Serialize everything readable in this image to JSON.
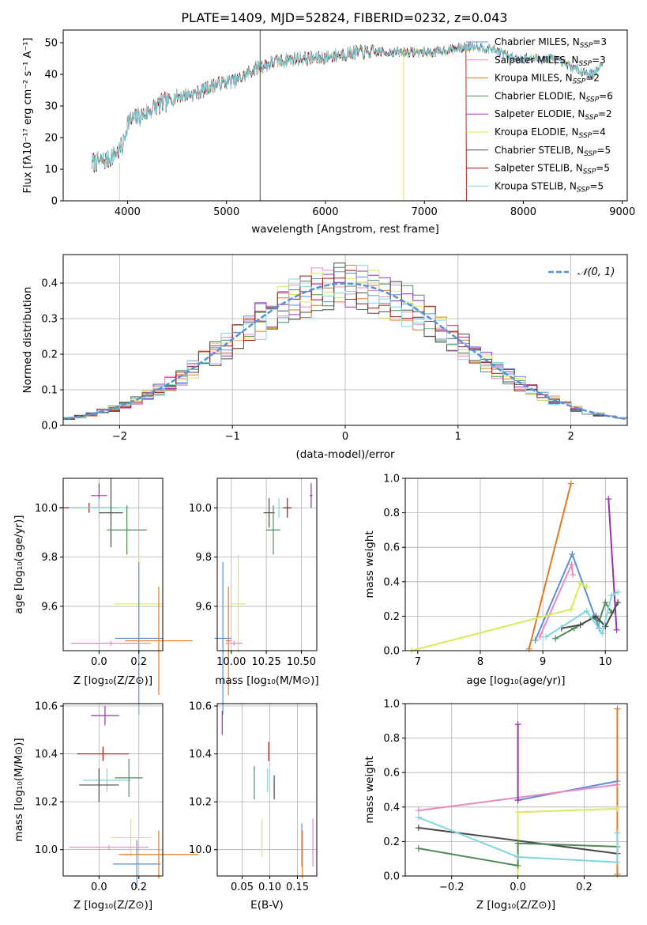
{
  "figure": {
    "title": "PLATE=1409, MJD=52824, FIBERID=0232, z=0.043",
    "colors": {
      "chabrier_miles": "#5b8fd9",
      "salpeter_miles": "#e88ac0",
      "kroupa_miles": "#e07b24",
      "chabrier_elodie": "#4f8a5b",
      "salpeter_elodie": "#9a2fb0",
      "kroupa_elodie": "#d9e95a",
      "chabrier_stelib": "#4a4a4a",
      "salpeter_stelib": "#a31515",
      "kroupa_stelib": "#7fd6e0",
      "gauss": "#5b8fd9"
    }
  },
  "chart_data": [
    {
      "id": "spectrum",
      "type": "line",
      "title": "PLATE=1409, MJD=52824, FIBERID=0232, z=0.043",
      "xlabel": "wavelength [Angstrom, rest frame]",
      "ylabel": "Flux [fλ10⁻¹⁷ erg cm⁻² s⁻¹ A⁻¹]",
      "xlim": [
        3350,
        9050
      ],
      "ylim": [
        0,
        54
      ],
      "xticks": [
        4000,
        5000,
        6000,
        7000,
        8000,
        9000
      ],
      "yticks": [
        0,
        10,
        20,
        30,
        40,
        50
      ],
      "grid": false,
      "legend_position": "top-right",
      "continuum": [
        [
          3640,
          12
        ],
        [
          3800,
          13
        ],
        [
          3950,
          17
        ],
        [
          4000,
          25
        ],
        [
          4150,
          27
        ],
        [
          4300,
          30
        ],
        [
          4500,
          33
        ],
        [
          4700,
          34
        ],
        [
          4900,
          37
        ],
        [
          5100,
          38
        ],
        [
          5300,
          42
        ],
        [
          5500,
          44
        ],
        [
          5700,
          45
        ],
        [
          5900,
          45
        ],
        [
          6100,
          46
        ],
        [
          6300,
          47
        ],
        [
          6500,
          47
        ],
        [
          6700,
          47
        ],
        [
          6900,
          47
        ],
        [
          7100,
          47
        ],
        [
          7300,
          48
        ],
        [
          7500,
          49
        ],
        [
          7700,
          48
        ],
        [
          7900,
          45
        ],
        [
          8100,
          45
        ],
        [
          8300,
          45
        ],
        [
          8500,
          42
        ],
        [
          8700,
          40
        ],
        [
          8800,
          43
        ]
      ],
      "series": [
        {
          "name": "Chabrier MILES, N",
          "sub": "SSP",
          "suffix": "=3",
          "color": "#5b8fd9"
        },
        {
          "name": "Salpeter MILES, N",
          "sub": "SSP",
          "suffix": "=3",
          "color": "#e88ac0"
        },
        {
          "name": "Kroupa MILES, N",
          "sub": "SSP",
          "suffix": "=2",
          "color": "#e07b24"
        },
        {
          "name": "Chabrier ELODIE, N",
          "sub": "SSP",
          "suffix": "=6",
          "color": "#4f8a5b"
        },
        {
          "name": "Salpeter ELODIE, N",
          "sub": "SSP",
          "suffix": "=2",
          "color": "#9a2fb0"
        },
        {
          "name": "Kroupa ELODIE, N",
          "sub": "SSP",
          "suffix": "=4",
          "color": "#d9e95a"
        },
        {
          "name": "Chabrier STELIB, N",
          "sub": "SSP",
          "suffix": "=5",
          "color": "#4a4a4a"
        },
        {
          "name": "Salpeter STELIB, N",
          "sub": "SSP",
          "suffix": "=5",
          "color": "#a31515"
        },
        {
          "name": "Kroupa STELIB, N",
          "sub": "SSP",
          "suffix": "=5",
          "color": "#7fd6e0"
        }
      ]
    },
    {
      "id": "residuals",
      "type": "line",
      "xlabel": "(data-model)/error",
      "ylabel": "Normed distribution",
      "xlim": [
        -2.5,
        2.5
      ],
      "ylim": [
        0,
        0.48
      ],
      "xticks": [
        -2,
        -1,
        0,
        1,
        2
      ],
      "yticks": [
        0.0,
        0.1,
        0.2,
        0.3,
        0.4
      ],
      "grid": true,
      "legend_position": "top-right",
      "legend": "𝒩(0, 1)",
      "bin_width": 0.1
    },
    {
      "id": "age_vs_z",
      "type": "scatter",
      "xlabel": "Z [log₁₀(Z/Z⊙)]",
      "ylabel": "age  [log₁₀(age/yr)]",
      "xlim": [
        -0.18,
        0.32
      ],
      "ylim": [
        9.42,
        10.12
      ],
      "xticks": [
        0.0,
        0.2
      ],
      "yticks": [
        9.6,
        9.8,
        10.0
      ],
      "grid": true,
      "points": [
        {
          "x": 0.0,
          "y": 10.05,
          "xerr": 0.04,
          "yerr": 0.05,
          "c": "#9a2fb0"
        },
        {
          "x": -0.05,
          "y": 10.0,
          "xerr": 0.15,
          "yerr": 0.02,
          "c": "#a31515"
        },
        {
          "x": 0.0,
          "y": 10.0,
          "xerr": 0.15,
          "yerr": 0.04,
          "c": "#7fd6e0"
        },
        {
          "x": 0.06,
          "y": 9.98,
          "xerr": 0.06,
          "yerr": 0.14,
          "c": "#4a4a4a"
        },
        {
          "x": 0.14,
          "y": 9.91,
          "xerr": 0.1,
          "yerr": 0.1,
          "c": "#4f8a5b"
        },
        {
          "x": 0.2,
          "y": 9.61,
          "xerr": 0.12,
          "yerr": 0.2,
          "c": "#d9e95a"
        },
        {
          "x": 0.2,
          "y": 9.47,
          "xerr": 0.12,
          "yerr": 0.31,
          "c": "#5b8fd9"
        },
        {
          "x": 0.3,
          "y": 9.46,
          "xerr": 0.17,
          "yerr": 0.22,
          "c": "#e07b24"
        },
        {
          "x": 0.06,
          "y": 9.45,
          "xerr": 0.2,
          "yerr": 0.01,
          "c": "#e88ac0"
        }
      ]
    },
    {
      "id": "age_vs_mass",
      "type": "scatter",
      "xlabel": "mass [log₁₀(M/M⊙)]",
      "ylabel": "",
      "xlim": [
        9.9,
        10.61
      ],
      "ylim": [
        9.42,
        10.12
      ],
      "xticks": [
        10.0,
        10.25,
        10.5
      ],
      "yticks": [
        9.6,
        9.8,
        10.0
      ],
      "grid": true,
      "points": [
        {
          "x": 10.57,
          "y": 10.05,
          "xerr": 0.01,
          "yerr": 0.05,
          "c": "#9a2fb0"
        },
        {
          "x": 10.4,
          "y": 10.0,
          "xerr": 0.03,
          "yerr": 0.04,
          "c": "#a31515"
        },
        {
          "x": 10.34,
          "y": 10.0,
          "xerr": 0.01,
          "yerr": 0.04,
          "c": "#7fd6e0"
        },
        {
          "x": 10.27,
          "y": 9.98,
          "xerr": 0.04,
          "yerr": 0.06,
          "c": "#4a4a4a"
        },
        {
          "x": 10.3,
          "y": 9.91,
          "xerr": 0.05,
          "yerr": 0.1,
          "c": "#4f8a5b"
        },
        {
          "x": 10.05,
          "y": 9.61,
          "xerr": 0.05,
          "yerr": 0.2,
          "c": "#d9e95a"
        },
        {
          "x": 9.94,
          "y": 9.47,
          "xerr": 0.06,
          "yerr": 0.31,
          "c": "#5b8fd9"
        },
        {
          "x": 9.98,
          "y": 9.46,
          "xerr": 0.02,
          "yerr": 0.22,
          "c": "#e07b24"
        },
        {
          "x": 10.02,
          "y": 9.45,
          "xerr": 0.06,
          "yerr": 0.01,
          "c": "#e88ac0"
        }
      ]
    },
    {
      "id": "weight_vs_age",
      "type": "line",
      "xlabel": "age  [log₁₀(age/yr)]",
      "ylabel": "mass weight",
      "xlim": [
        6.8,
        10.35
      ],
      "ylim": [
        0,
        1.0
      ],
      "xticks": [
        7,
        8,
        9,
        10
      ],
      "yticks": [
        0.0,
        0.2,
        0.4,
        0.6,
        0.8,
        1.0
      ],
      "grid": true,
      "series": [
        {
          "c": "#e07b24",
          "pts": [
            [
              8.78,
              0.01
            ],
            [
              9.45,
              0.97
            ]
          ]
        },
        {
          "c": "#5b8fd9",
          "pts": [
            [
              8.88,
              0.06
            ],
            [
              9.47,
              0.56
            ],
            [
              9.9,
              0.13
            ]
          ]
        },
        {
          "c": "#e88ac0",
          "pts": [
            [
              8.95,
              0.08
            ],
            [
              9.46,
              0.5
            ],
            [
              9.48,
              0.44
            ]
          ]
        },
        {
          "c": "#9a2fb0",
          "pts": [
            [
              10.05,
              0.88
            ],
            [
              10.18,
              0.12
            ]
          ]
        },
        {
          "c": "#d9e95a",
          "pts": [
            [
              6.9,
              0.0
            ],
            [
              9.45,
              0.24
            ],
            [
              9.6,
              0.39
            ],
            [
              9.7,
              0.37
            ]
          ]
        },
        {
          "c": "#4f8a5b",
          "pts": [
            [
              9.2,
              0.07
            ],
            [
              9.5,
              0.13
            ],
            [
              9.8,
              0.19
            ],
            [
              9.9,
              0.17
            ],
            [
              10.0,
              0.28
            ],
            [
              10.1,
              0.22
            ]
          ]
        },
        {
          "c": "#4a4a4a",
          "pts": [
            [
              9.3,
              0.13
            ],
            [
              9.6,
              0.15
            ],
            [
              9.85,
              0.2
            ],
            [
              10.0,
              0.14
            ],
            [
              10.2,
              0.28
            ]
          ]
        },
        {
          "c": "#7fd6e0",
          "pts": [
            [
              9.05,
              0.08
            ],
            [
              9.7,
              0.23
            ],
            [
              9.95,
              0.1
            ],
            [
              10.1,
              0.32
            ],
            [
              10.2,
              0.34
            ]
          ]
        }
      ]
    },
    {
      "id": "mass_vs_z",
      "type": "scatter",
      "xlabel": "Z [log₁₀(Z/Z⊙)]",
      "ylabel": "mass [log₁₀(M/M⊙)]",
      "xlim": [
        -0.18,
        0.32
      ],
      "ylim": [
        9.89,
        10.61
      ],
      "xticks": [
        0.0,
        0.2
      ],
      "yticks": [
        10.0,
        10.2,
        10.4,
        10.6
      ],
      "grid": true,
      "points": [
        {
          "x": 0.03,
          "y": 10.56,
          "xerr": 0.07,
          "yerr": 0.04,
          "c": "#9a2fb0"
        },
        {
          "x": 0.02,
          "y": 10.4,
          "xerr": 0.13,
          "yerr": 0.03,
          "c": "#a31515"
        },
        {
          "x": 0.04,
          "y": 10.29,
          "xerr": 0.12,
          "yerr": 0.05,
          "c": "#7fd6e0"
        },
        {
          "x": 0.0,
          "y": 10.27,
          "xerr": 0.1,
          "yerr": 0.07,
          "c": "#4a4a4a"
        },
        {
          "x": 0.15,
          "y": 10.3,
          "xerr": 0.07,
          "yerr": 0.08,
          "c": "#4f8a5b"
        },
        {
          "x": 0.16,
          "y": 10.05,
          "xerr": 0.1,
          "yerr": 0.08,
          "c": "#d9e95a"
        },
        {
          "x": 0.19,
          "y": 9.94,
          "xerr": 0.12,
          "yerr": 0.1,
          "c": "#5b8fd9"
        },
        {
          "x": 0.3,
          "y": 9.98,
          "xerr": 0.2,
          "yerr": 0.1,
          "c": "#e07b24"
        },
        {
          "x": 0.05,
          "y": 10.01,
          "xerr": 0.2,
          "yerr": 0.01,
          "c": "#e88ac0"
        }
      ]
    },
    {
      "id": "mass_vs_ebv",
      "type": "scatter",
      "xlabel": "E(B-V)",
      "ylabel": "",
      "xlim": [
        0.005,
        0.185
      ],
      "ylim": [
        9.89,
        10.61
      ],
      "xticks": [
        0.05,
        0.1,
        0.15
      ],
      "yticks": [
        10.0,
        10.2,
        10.4,
        10.6
      ],
      "grid": true,
      "points": [
        {
          "x": 0.014,
          "y": 10.53,
          "xerr": 0,
          "yerr": 0.05,
          "c": "#9a2fb0"
        },
        {
          "x": 0.098,
          "y": 10.41,
          "xerr": 0,
          "yerr": 0.04,
          "c": "#a31515"
        },
        {
          "x": 0.096,
          "y": 10.29,
          "xerr": 0,
          "yerr": 0.05,
          "c": "#7fd6e0"
        },
        {
          "x": 0.108,
          "y": 10.26,
          "xerr": 0,
          "yerr": 0.05,
          "c": "#4a4a4a"
        },
        {
          "x": 0.072,
          "y": 10.28,
          "xerr": 0,
          "yerr": 0.07,
          "c": "#4f8a5b"
        },
        {
          "x": 0.086,
          "y": 10.05,
          "xerr": 0,
          "yerr": 0.08,
          "c": "#d9e95a"
        },
        {
          "x": 0.158,
          "y": 10.02,
          "xerr": 0,
          "yerr": 0.09,
          "c": "#5b8fd9"
        },
        {
          "x": 0.159,
          "y": 9.98,
          "xerr": 0,
          "yerr": 0.1,
          "c": "#e07b24"
        },
        {
          "x": 0.178,
          "y": 10.03,
          "xerr": 0,
          "yerr": 0.1,
          "c": "#e88ac0"
        }
      ]
    },
    {
      "id": "weight_vs_z",
      "type": "line",
      "xlabel": "Z [log₁₀(Z/Z⊙)]",
      "ylabel": "mass weight",
      "xlim": [
        -0.34,
        0.33
      ],
      "ylim": [
        0,
        1.0
      ],
      "xticks": [
        -0.2,
        0.0,
        0.2
      ],
      "yticks": [
        0.0,
        0.2,
        0.4,
        0.6,
        0.8,
        1.0
      ],
      "grid": true,
      "series": [
        {
          "c": "#e07b24",
          "pts": [
            [
              0.3,
              0.01
            ],
            [
              0.3,
              0.97
            ]
          ]
        },
        {
          "c": "#5b8fd9",
          "pts": [
            [
              0.0,
              0.44
            ],
            [
              0.3,
              0.55
            ]
          ]
        },
        {
          "c": "#e88ac0",
          "pts": [
            [
              -0.3,
              0.38
            ],
            [
              0.3,
              0.53
            ]
          ]
        },
        {
          "c": "#9a2fb0",
          "pts": [
            [
              0.0,
              0.88
            ],
            [
              0.0,
              0.44
            ]
          ]
        },
        {
          "c": "#d9e95a",
          "pts": [
            [
              0.0,
              0.0
            ],
            [
              0.0,
              0.37
            ],
            [
              0.3,
              0.39
            ]
          ]
        },
        {
          "c": "#4a4a4a",
          "pts": [
            [
              -0.3,
              0.28
            ],
            [
              0.3,
              0.13
            ]
          ]
        },
        {
          "c": "#4f8a5b",
          "pts": [
            [
              -0.3,
              0.16
            ],
            [
              0.0,
              0.06
            ],
            [
              0.0,
              0.19
            ],
            [
              0.3,
              0.17
            ]
          ]
        },
        {
          "c": "#7fd6e0",
          "pts": [
            [
              -0.3,
              0.34
            ],
            [
              0.0,
              0.11
            ],
            [
              0.3,
              0.08
            ],
            [
              0.3,
              0.25
            ]
          ]
        }
      ]
    }
  ]
}
